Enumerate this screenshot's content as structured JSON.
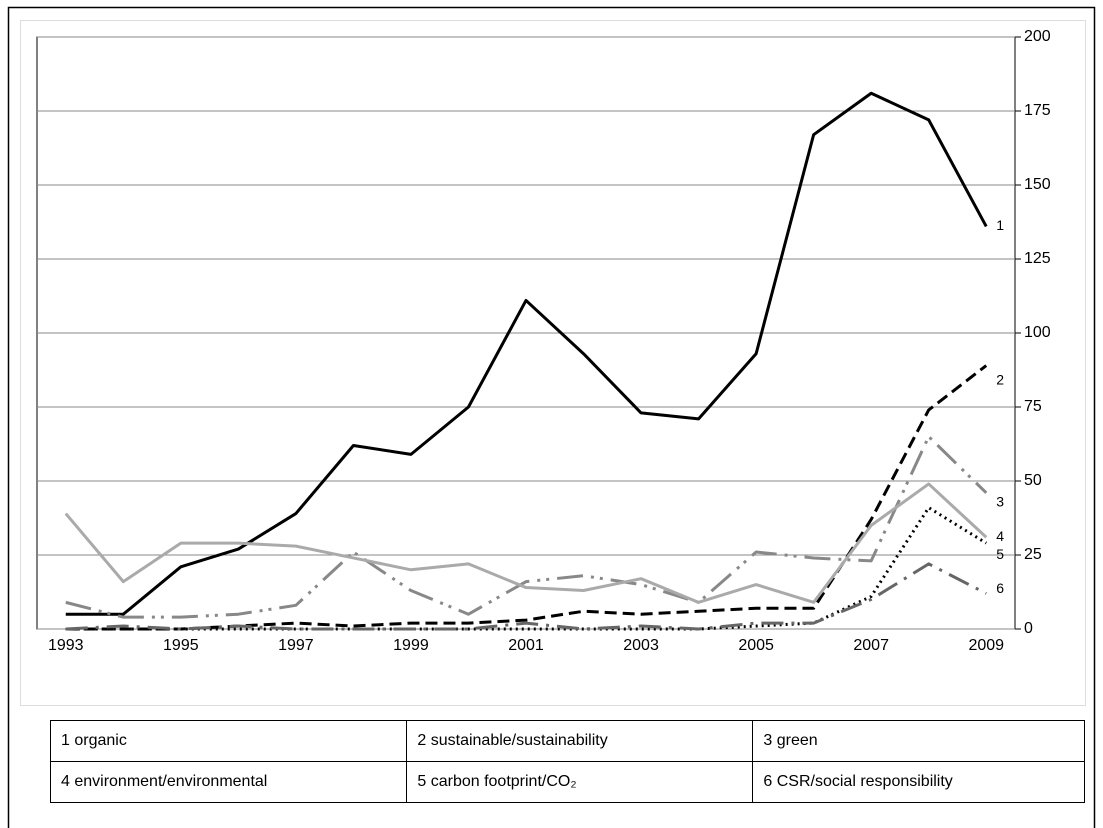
{
  "chart_data": {
    "type": "line",
    "categories": [
      "1993",
      null,
      "1995",
      null,
      "1997",
      null,
      "1999",
      null,
      "2001",
      null,
      "2003",
      null,
      "2005",
      null,
      "2007",
      null,
      "2009"
    ],
    "ylim": [
      0,
      200
    ],
    "yticks": [
      0,
      25,
      50,
      75,
      100,
      125,
      150,
      175,
      200
    ],
    "grid": true,
    "y_axis_side": "right",
    "series": [
      {
        "name": "1 organic",
        "end_label": "1",
        "color": "#000000",
        "dash": "solid",
        "values": [
          5,
          5,
          21,
          27,
          39,
          62,
          59,
          75,
          111,
          93,
          73,
          71,
          93,
          167,
          181,
          172,
          136
        ]
      },
      {
        "name": "2 sustainable/sustainability",
        "end_label": "2",
        "color": "#000000",
        "dash": "dashed",
        "values": [
          0,
          0,
          0,
          1,
          2,
          1,
          2,
          2,
          3,
          6,
          5,
          6,
          7,
          7,
          37,
          74,
          89
        ]
      },
      {
        "name": "3 green",
        "end_label": "3",
        "color": "#888888",
        "dash": "dash-dot-dot",
        "values": [
          9,
          4,
          4,
          5,
          8,
          26,
          13,
          5,
          16,
          18,
          15,
          9,
          26,
          24,
          23,
          65,
          46
        ]
      },
      {
        "name": "4 environment/environmental",
        "end_label": "4",
        "color": "#aaaaaa",
        "dash": "solid",
        "values": [
          39,
          16,
          29,
          29,
          28,
          24,
          20,
          22,
          14,
          13,
          17,
          9,
          15,
          9,
          35,
          49,
          31
        ]
      },
      {
        "name": "5 carbon footprint/CO₂",
        "end_label": "5",
        "color": "#000000",
        "dash": "dotted",
        "values": [
          0,
          0,
          0,
          0,
          0,
          0,
          0,
          0,
          0,
          0,
          0,
          0,
          1,
          2,
          11,
          41,
          29
        ]
      },
      {
        "name": "6 CSR/social responsibility",
        "end_label": "6",
        "color": "#666666",
        "dash": "dash-dot",
        "values": [
          0,
          1,
          0,
          1,
          0,
          0,
          0,
          0,
          2,
          0,
          1,
          0,
          2,
          2,
          10,
          22,
          12
        ]
      }
    ]
  }
}
